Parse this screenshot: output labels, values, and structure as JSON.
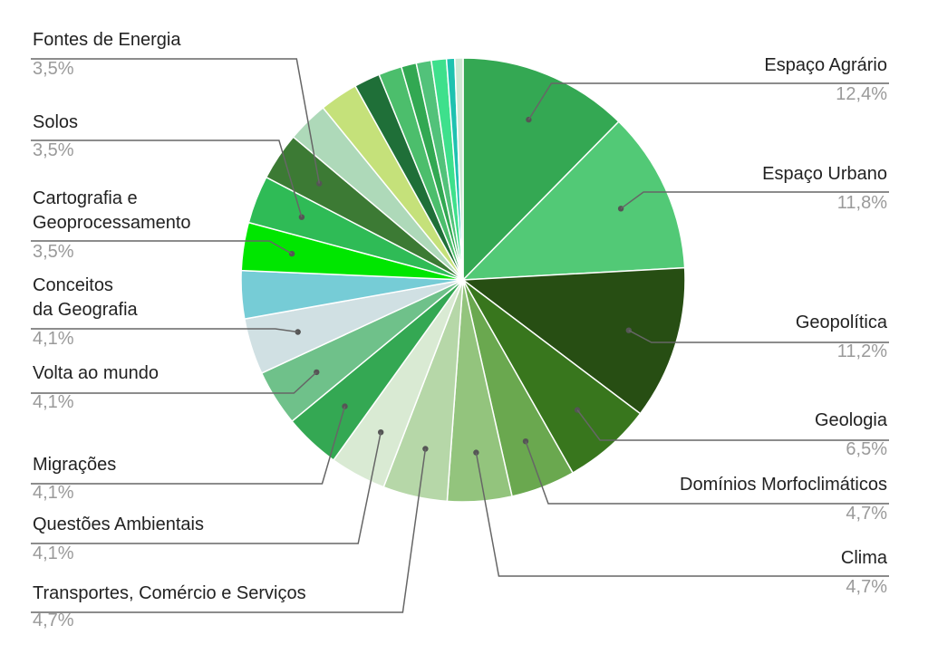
{
  "chart_data": {
    "type": "pie",
    "title": "",
    "slices": [
      {
        "name": "Espaço Agrário",
        "value": 12.4,
        "label_value": "12,4%",
        "color": "#34a853",
        "labeled": true
      },
      {
        "name": "Espaço Urbano",
        "value": 11.8,
        "label_value": "11,8%",
        "color": "#52c976",
        "labeled": true
      },
      {
        "name": "Geopolítica",
        "value": 11.2,
        "label_value": "11,2%",
        "color": "#274e13",
        "labeled": true
      },
      {
        "name": "Geologia",
        "value": 6.5,
        "label_value": "6,5%",
        "color": "#38761d",
        "labeled": true
      },
      {
        "name": "Domínios Morfoclimáticos",
        "value": 4.7,
        "label_value": "4,7%",
        "color": "#6aa84f",
        "labeled": true
      },
      {
        "name": "Clima",
        "value": 4.7,
        "label_value": "4,7%",
        "color": "#93c47d",
        "labeled": true
      },
      {
        "name": "Transportes, Comércio e Serviços",
        "value": 4.7,
        "label_value": "4,7%",
        "color": "#b6d7a8",
        "labeled": true
      },
      {
        "name": "Questões Ambientais",
        "value": 4.1,
        "label_value": "4,1%",
        "color": "#d9ead3",
        "labeled": true
      },
      {
        "name": "Migrações",
        "value": 4.1,
        "label_value": "4,1%",
        "color": "#34a853",
        "labeled": true
      },
      {
        "name": "Volta ao mundo",
        "value": 4.1,
        "label_value": "4,1%",
        "color": "#6fc18a",
        "labeled": true
      },
      {
        "name": "Conceitos da Geografia",
        "value": 4.1,
        "label_value": "4,1%",
        "color": "#d0e0e3",
        "labeled": true
      },
      {
        "name": "",
        "value": 3.5,
        "label_value": "",
        "color": "#76ccd6",
        "labeled": false
      },
      {
        "name": "Cartografia e Geoprocessamento",
        "value": 3.5,
        "label_value": "3,5%",
        "color": "#00e600",
        "labeled": true
      },
      {
        "name": "Solos",
        "value": 3.5,
        "label_value": "3,5%",
        "color": "#2fbb56",
        "labeled": true
      },
      {
        "name": "Fontes de Energia",
        "value": 3.5,
        "label_value": "3,5%",
        "color": "#3c7a34",
        "labeled": true
      },
      {
        "name": "",
        "value": 3.0,
        "label_value": "",
        "color": "#aed9b9",
        "labeled": false
      },
      {
        "name": "",
        "value": 2.8,
        "label_value": "",
        "color": "#c5e17a",
        "labeled": false
      },
      {
        "name": "",
        "value": 1.9,
        "label_value": "",
        "color": "#1f6f38",
        "labeled": false
      },
      {
        "name": "",
        "value": 1.7,
        "label_value": "",
        "color": "#4cbe6c",
        "labeled": false
      },
      {
        "name": "",
        "value": 1.1,
        "label_value": "",
        "color": "#32a852",
        "labeled": false
      },
      {
        "name": "",
        "value": 1.1,
        "label_value": "",
        "color": "#52c27a",
        "labeled": false
      },
      {
        "name": "",
        "value": 1.1,
        "label_value": "",
        "color": "#3ee08c",
        "labeled": false
      },
      {
        "name": "",
        "value": 0.6,
        "label_value": "",
        "color": "#1ec2b0",
        "labeled": false
      },
      {
        "name": "",
        "value": 0.6,
        "label_value": "",
        "color": "#cfe8d4",
        "labeled": false
      }
    ],
    "legend": "none"
  }
}
